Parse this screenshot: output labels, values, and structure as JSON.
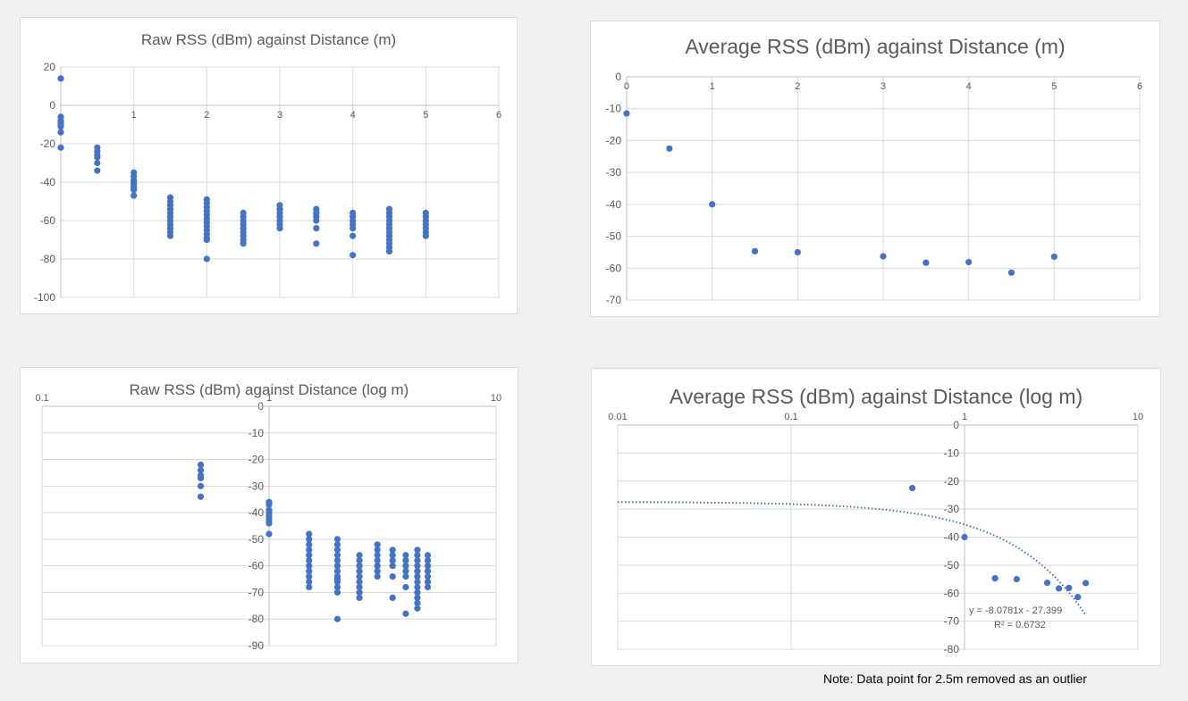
{
  "colors": {
    "marker": "#4472c4",
    "grid": "#d9d9d9",
    "axis": "#bfbfbf",
    "title": "#595959",
    "tick": "#595959"
  },
  "note": "Note: Data point for 2.5m removed as an outlier",
  "chart_data": [
    {
      "type": "scatter",
      "title": "Raw RSS (dBm) against Distance (m)",
      "xscale": "linear",
      "xlim": [
        0,
        6
      ],
      "ylim": [
        -100,
        20
      ],
      "xticks": [
        1,
        2,
        3,
        4,
        5,
        6
      ],
      "yticks": [
        20,
        0,
        -20,
        -40,
        -60,
        -80,
        -100
      ],
      "x_tick_labels": [
        "1",
        "2",
        "3",
        "4",
        "5",
        "6"
      ],
      "y_tick_labels": [
        "20",
        "0",
        "-20",
        "-40",
        "-60",
        "-80",
        "-100"
      ],
      "grid": true,
      "series": [
        {
          "x": [
            0,
            0,
            0,
            0,
            0,
            0,
            0,
            0,
            0.5,
            0.5,
            0.5,
            0.5,
            0.5,
            0.5,
            1,
            1,
            1,
            1,
            1,
            1,
            1,
            1,
            1,
            1.5,
            1.5,
            1.5,
            1.5,
            1.5,
            1.5,
            1.5,
            1.5,
            1.5,
            1.5,
            1.5,
            2,
            2,
            2,
            2,
            2,
            2,
            2,
            2,
            2,
            2,
            2,
            2,
            2,
            2.5,
            2.5,
            2.5,
            2.5,
            2.5,
            2.5,
            2.5,
            2.5,
            2.5,
            3,
            3,
            3,
            3,
            3,
            3,
            3,
            3.5,
            3.5,
            3.5,
            3.5,
            3.5,
            3.5,
            3.5,
            4,
            4,
            4,
            4,
            4,
            4,
            4,
            4.5,
            4.5,
            4.5,
            4.5,
            4.5,
            4.5,
            4.5,
            4.5,
            4.5,
            4.5,
            4.5,
            4.5,
            5,
            5,
            5,
            5,
            5,
            5,
            5
          ],
          "y": [
            14,
            -6,
            -8,
            -9,
            -10,
            -11,
            -14,
            -22,
            -22,
            -24,
            -26,
            -27,
            -30,
            -34,
            -35,
            -37,
            -39,
            -40,
            -41,
            -42,
            -43,
            -44,
            -47,
            -48,
            -50,
            -52,
            -54,
            -56,
            -58,
            -60,
            -62,
            -64,
            -66,
            -68,
            -49,
            -51,
            -53,
            -55,
            -57,
            -59,
            -61,
            -63,
            -65,
            -67,
            -69,
            -70,
            -80,
            -56,
            -58,
            -60,
            -62,
            -64,
            -66,
            -68,
            -70,
            -72,
            -52,
            -54,
            -56,
            -58,
            -60,
            -62,
            -64,
            -54,
            -56,
            -58,
            -60,
            -64,
            -72,
            -56,
            -56,
            -58,
            -60,
            -64,
            -68,
            -78,
            -62,
            -54,
            -56,
            -58,
            -60,
            -62,
            -64,
            -66,
            -68,
            -70,
            -72,
            -74,
            -76,
            -56,
            -58,
            -60,
            -62,
            -64,
            -66,
            -68
          ]
        }
      ]
    },
    {
      "type": "scatter",
      "title": "Average RSS (dBm) against Distance (m)",
      "xscale": "linear",
      "xlim": [
        0,
        6
      ],
      "ylim": [
        -70,
        0
      ],
      "xticks": [
        0,
        1,
        2,
        3,
        4,
        5,
        6
      ],
      "yticks": [
        0,
        -10,
        -20,
        -30,
        -40,
        -50,
        -60,
        -70
      ],
      "x_tick_labels": [
        "0",
        "1",
        "2",
        "3",
        "4",
        "5",
        "6"
      ],
      "y_tick_labels": [
        "0",
        "-10",
        "-20",
        "-30",
        "-40",
        "-50",
        "-60",
        "-70"
      ],
      "grid": true,
      "series": [
        {
          "x": [
            0,
            0.5,
            1,
            1.5,
            2,
            3,
            3.5,
            4,
            4.5,
            5
          ],
          "y": [
            -11.5,
            -22.5,
            -40,
            -54.7,
            -55,
            -56.3,
            -58.3,
            -58.1,
            -61.4,
            -56.4
          ]
        }
      ]
    },
    {
      "type": "scatter",
      "title": "Raw RSS (dBm) against Distance (log m)",
      "xscale": "log",
      "xlim": [
        0.1,
        10
      ],
      "ylim": [
        -90,
        0
      ],
      "xticks": [
        0.1,
        1,
        10
      ],
      "yticks": [
        0,
        -10,
        -20,
        -30,
        -40,
        -50,
        -60,
        -70,
        -80,
        -90
      ],
      "x_tick_labels": [
        "0.1",
        "1",
        "10"
      ],
      "y_tick_labels": [
        "0",
        "-10",
        "-20",
        "-30",
        "-40",
        "-50",
        "-60",
        "-70",
        "-80",
        "-90"
      ],
      "grid": true,
      "series": [
        {
          "x": [
            0.5,
            0.5,
            0.5,
            0.5,
            0.5,
            0.5,
            1,
            1,
            1,
            1,
            1,
            1,
            1,
            1,
            1,
            1.5,
            1.5,
            1.5,
            1.5,
            1.5,
            1.5,
            1.5,
            1.5,
            1.5,
            1.5,
            1.5,
            2,
            2,
            2,
            2,
            2,
            2,
            2,
            2,
            2,
            2,
            2,
            2,
            2,
            2.5,
            2.5,
            2.5,
            2.5,
            2.5,
            2.5,
            2.5,
            2.5,
            2.5,
            3,
            3,
            3,
            3,
            3,
            3,
            3,
            3.5,
            3.5,
            3.5,
            3.5,
            3.5,
            3.5,
            4,
            4,
            4,
            4,
            4,
            4,
            4,
            4.5,
            4.5,
            4.5,
            4.5,
            4.5,
            4.5,
            4.5,
            4.5,
            4.5,
            4.5,
            4.5,
            4.5,
            5,
            5,
            5,
            5,
            5,
            5,
            5
          ],
          "y": [
            -22,
            -24,
            -26,
            -27,
            -30,
            -34,
            -36,
            -37,
            -39,
            -40,
            -41,
            -42,
            -43,
            -44,
            -48,
            -48,
            -50,
            -52,
            -54,
            -56,
            -58,
            -60,
            -62,
            -64,
            -66,
            -68,
            -50,
            -52,
            -54,
            -56,
            -58,
            -60,
            -62,
            -64,
            -66,
            -68,
            -70,
            -80,
            -65,
            -56,
            -58,
            -60,
            -62,
            -64,
            -66,
            -68,
            -70,
            -72,
            -52,
            -54,
            -56,
            -58,
            -60,
            -62,
            -64,
            -54,
            -56,
            -58,
            -60,
            -64,
            -72,
            -56,
            -58,
            -60,
            -64,
            -68,
            -78,
            -62,
            -54,
            -56,
            -58,
            -60,
            -62,
            -64,
            -66,
            -68,
            -70,
            -72,
            -74,
            -76,
            -56,
            -58,
            -60,
            -62,
            -64,
            -66,
            -68
          ]
        }
      ]
    },
    {
      "type": "scatter",
      "title": "Average RSS (dBm) against Distance (log m)",
      "xscale": "log",
      "xlim": [
        0.01,
        10
      ],
      "ylim": [
        -80,
        0
      ],
      "xticks": [
        0.01,
        0.1,
        1,
        10
      ],
      "yticks": [
        0,
        -10,
        -20,
        -30,
        -40,
        -50,
        -60,
        -70,
        -80
      ],
      "x_tick_labels": [
        "0.01",
        "0.1",
        "1",
        "10"
      ],
      "y_tick_labels": [
        "0",
        "-10",
        "-20",
        "-30",
        "-40",
        "-50",
        "-60",
        "-70",
        "-80"
      ],
      "grid": true,
      "series": [
        {
          "x": [
            0.5,
            1,
            1.5,
            2,
            3,
            3.5,
            4,
            4.5,
            5
          ],
          "y": [
            -22.5,
            -40,
            -54.7,
            -55,
            -56.3,
            -58.3,
            -58.1,
            -61.4,
            -56.4
          ]
        }
      ],
      "trendline": {
        "type": "linear",
        "slope": -8.0781,
        "intercept": -27.399,
        "x_range": [
          0.01,
          5
        ],
        "equation": "y = -8.0781x - 27.399",
        "r_squared": "R² = 0.6732"
      }
    }
  ]
}
